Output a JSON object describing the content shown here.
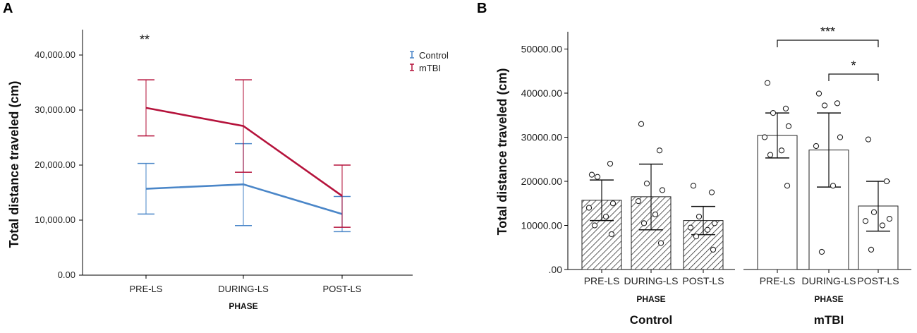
{
  "chart_data": [
    {
      "panel": "A",
      "type": "line",
      "ylabel": "Total distance traveled (cm)",
      "xlabel": "PHASE",
      "categories": [
        "PRE-LS",
        "DURING-LS",
        "POST-LS"
      ],
      "ylim": [
        0,
        45000
      ],
      "y_ticks": [
        "0.00",
        "10,000.00",
        "20,000.00",
        "30,000.00",
        "40,000.00"
      ],
      "y_tick_values": [
        0,
        10000,
        20000,
        30000,
        40000
      ],
      "series": [
        {
          "name": "Control",
          "color": "#4a86c8",
          "values": [
            15700,
            16500,
            11100
          ],
          "err_low": [
            11100,
            9000,
            7900
          ],
          "err_high": [
            20300,
            23900,
            14300
          ]
        },
        {
          "name": "mTBI",
          "color": "#b5123b",
          "values": [
            30400,
            27100,
            14400
          ],
          "err_low": [
            25300,
            18700,
            8700
          ],
          "err_high": [
            35500,
            35500,
            20000
          ]
        }
      ],
      "annotation": "**",
      "legend_position": "top-right"
    },
    {
      "panel": "B",
      "type": "bar",
      "ylabel": "Total distance traveled (cm)",
      "ylim": [
        0,
        55000
      ],
      "y_ticks": [
        ".00",
        "10000.00",
        "20000.00",
        "30000.00",
        "40000.00",
        "50000.00"
      ],
      "y_tick_values": [
        0,
        10000,
        20000,
        30000,
        40000,
        50000
      ],
      "groups": [
        {
          "name": "Control",
          "xlabel": "PHASE",
          "pattern": "hatched",
          "categories": [
            "PRE-LS",
            "DURING-LS",
            "POST-LS"
          ],
          "means": [
            15700,
            16500,
            11100
          ],
          "err_low": [
            11100,
            9000,
            7900
          ],
          "err_high": [
            20300,
            23900,
            14300
          ],
          "points": [
            [
              21500,
              24000,
              21000,
              15000,
              14000,
              12000,
              10000,
              8000
            ],
            [
              33000,
              27000,
              19500,
              18000,
              15500,
              12500,
              10500,
              6000
            ],
            [
              19000,
              17500,
              12000,
              10500,
              9500,
              9000,
              7500,
              4500
            ]
          ]
        },
        {
          "name": "mTBI",
          "xlabel": "PHASE",
          "pattern": "open",
          "categories": [
            "PRE-LS",
            "DURING-LS",
            "POST-LS"
          ],
          "means": [
            30400,
            27100,
            14400
          ],
          "err_low": [
            25300,
            18700,
            8700
          ],
          "err_high": [
            35500,
            35500,
            20000
          ],
          "points": [
            [
              42300,
              36500,
              35500,
              32500,
              30000,
              27000,
              26000,
              19000
            ],
            [
              39900,
              37700,
              37200,
              30000,
              28000,
              19000,
              4000
            ],
            [
              29500,
              20000,
              13000,
              11500,
              11000,
              10000,
              4500
            ]
          ]
        }
      ],
      "significance": [
        {
          "label": "***",
          "from": "PRE-LS",
          "to": "POST-LS",
          "group": "mTBI"
        },
        {
          "label": "*",
          "from": "DURING-LS",
          "to": "POST-LS",
          "group": "mTBI"
        }
      ]
    }
  ]
}
